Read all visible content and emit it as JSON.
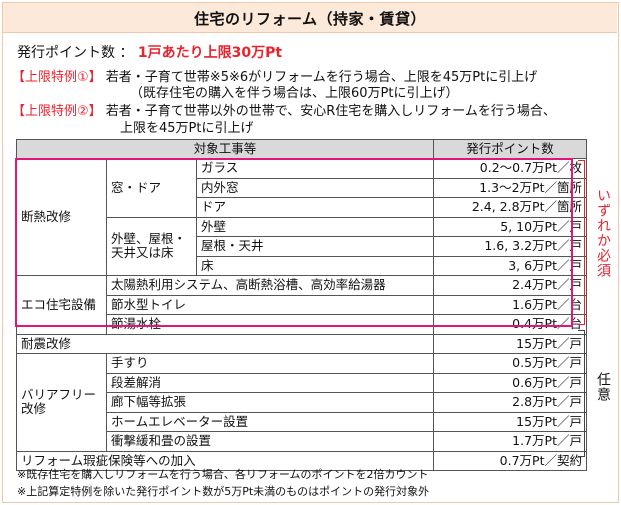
{
  "title": "住宅のリフォーム（持家・賃貸）",
  "points_line": {
    "label": "発行ポイント数 ：",
    "value": "1戸あたり上限30万Pt"
  },
  "special1": {
    "tag": "【上限特例①】",
    "text": "若者・子育て世帯※5※6がリフォームを行う場合、上限を45万Ptに引上げ",
    "sub": "（既存住宅の購入を伴う場合は、上限60万Ptに引上げ）"
  },
  "special2": {
    "tag": "【上限特例②】",
    "text": "若者・子育て世帯以外の世帯で、安心R住宅を購入しリフォームを行う場合、",
    "sub": "上限を45万Ptに引上げ"
  },
  "table": {
    "header_work": "対象工事等",
    "header_points": "発行ポイント数",
    "cat_insulation": "断熱改修",
    "sub_window": "窓・ドア",
    "sub_exterior": "外壁、屋根・天井又は床",
    "rows_window": [
      {
        "item": "ガラス",
        "pts": "0.2～0.7万Pt／枚"
      },
      {
        "item": "内外窓",
        "pts": "1.3～2万Pt／箇所"
      },
      {
        "item": "ドア",
        "pts": "2.4, 2.8万Pt／箇所"
      }
    ],
    "rows_exterior": [
      {
        "item": "外壁",
        "pts": "5, 10万Pt／戸"
      },
      {
        "item": "屋根・天井",
        "pts": "1.6, 3.2万Pt／戸"
      },
      {
        "item": "床",
        "pts": "3, 6万Pt／戸"
      }
    ],
    "cat_eco": "エコ住宅設備",
    "rows_eco": [
      {
        "item": "太陽熱利用システム、高断熱浴槽、高効率給湯器",
        "pts": "2.4万Pt／戸"
      },
      {
        "item": "節水型トイレ",
        "pts": "1.6万Pt／台"
      },
      {
        "item": "節湯水栓",
        "pts": "0.4万Pt／台"
      }
    ],
    "quake": {
      "item": "耐震改修",
      "pts": "15万Pt／戸"
    },
    "cat_barrier": "バリアフリー改修",
    "rows_barrier": [
      {
        "item": "手すり",
        "pts": "0.5万Pt／戸"
      },
      {
        "item": "段差解消",
        "pts": "0.6万Pt／戸"
      },
      {
        "item": "廊下幅等拡張",
        "pts": "2.8万Pt／戸"
      },
      {
        "item": "ホームエレベーター設置",
        "pts": "15万Pt／戸"
      },
      {
        "item": "衝撃緩和畳の設置",
        "pts": "1.7万Pt／戸"
      }
    ],
    "insurance": {
      "item": "リフォーム瑕疵保険等への加入",
      "pts": "0.7万Pt／契約"
    }
  },
  "side_required": "いずれか必須",
  "side_optional": "任意",
  "notes": [
    "※既存住宅を購入しリフォームを行う場合、各リフォームのポイントを2倍カウント",
    "※上記算定特例を除いた発行ポイント数が5万Pt未満のものはポイントの発行対象外"
  ],
  "colors": {
    "accent_red": "#e8232e",
    "highlight_pink": "#e2157a",
    "title_band": "#fde9d9",
    "header_gray": "#d9d9d9"
  }
}
